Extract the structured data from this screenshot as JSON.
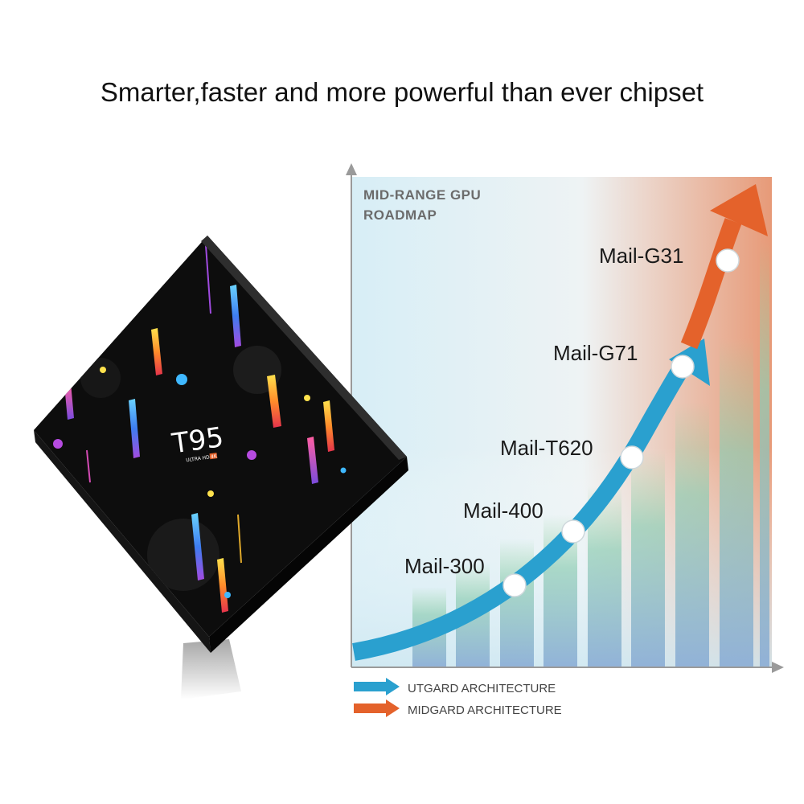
{
  "headline": "Smarter,faster and more powerful than ever chipset",
  "device": {
    "brand": "T95",
    "subtitle": "ULTRA HD",
    "badge": "4K"
  },
  "roadmap": {
    "title_line1": "MID-RANGE GPU",
    "title_line2": "ROADMAP",
    "milestones": [
      "Mail-300",
      "Mail-400",
      "Mail-T620",
      "Mail-G71",
      "Mail-G31"
    ],
    "legend": [
      {
        "label": "UTGARD ARCHITECTURE",
        "color": "#2aa0cf"
      },
      {
        "label": "MIDGARD ARCHITECTURE",
        "color": "#e4622b"
      }
    ]
  },
  "colors": {
    "utgard_arrow": "#2aa0cf",
    "midgard_arrow": "#e4622b",
    "device_body": "#0d0d0d"
  }
}
